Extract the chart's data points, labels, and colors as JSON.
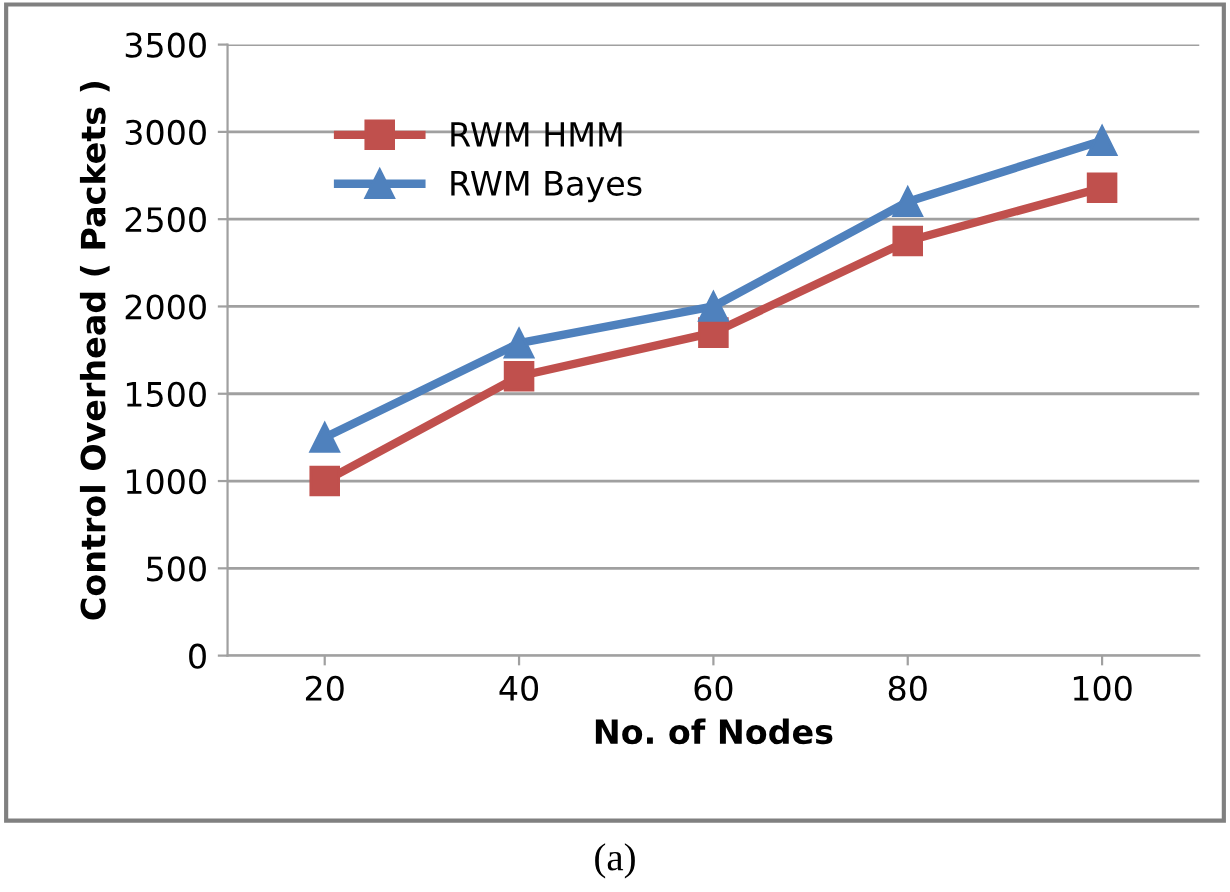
{
  "chart_data": {
    "type": "line",
    "xlabel": "No. of Nodes",
    "ylabel": "Control Overhead ( Packets )",
    "categories": [
      "20",
      "40",
      "60",
      "80",
      "100"
    ],
    "series": [
      {
        "name": "RWM HMM",
        "color": "#c0504d",
        "marker": "square",
        "values": [
          1000,
          1600,
          1850,
          2375,
          2680
        ]
      },
      {
        "name": "RWM Bayes",
        "color": "#4f81bd",
        "marker": "triangle",
        "values": [
          1250,
          1790,
          2000,
          2600,
          2950
        ]
      }
    ],
    "ylim": [
      0,
      3500
    ],
    "yticks": [
      0,
      500,
      1000,
      1500,
      2000,
      2500,
      3000,
      3500
    ],
    "grid": "y",
    "legend": "top left",
    "line_style": "solid",
    "annotations": [
      "(a)"
    ]
  }
}
